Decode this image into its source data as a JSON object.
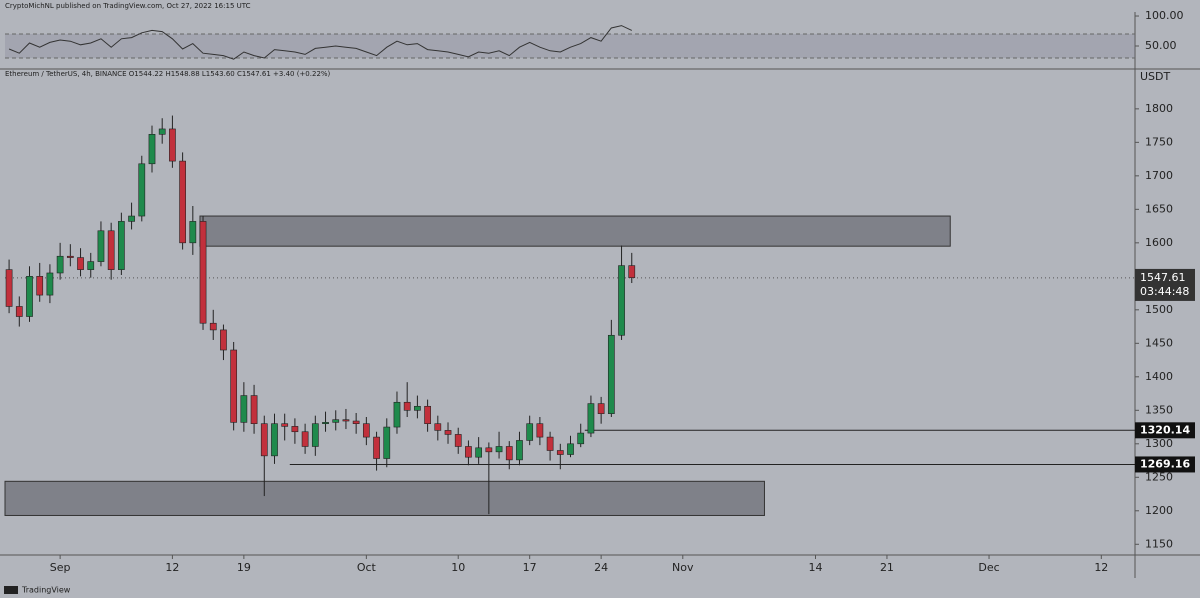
{
  "header": {
    "publisher": "CryptoMichNL published on TradingView.com, Oct 27, 2022 16:15 UTC"
  },
  "footer": {
    "brand": "TradingView"
  },
  "chart_data": [
    {
      "type": "line",
      "x": [
        -4,
        -3,
        -2,
        -1,
        0,
        1,
        2,
        3,
        4,
        5,
        6,
        7,
        8,
        9,
        10,
        11,
        12,
        13,
        14,
        15,
        16,
        17,
        18,
        19,
        20,
        21,
        22,
        23,
        24,
        25,
        26,
        27,
        28,
        29,
        30,
        31,
        32,
        33,
        34,
        35,
        36,
        37,
        38,
        39,
        40,
        41,
        42,
        43,
        44,
        45,
        46,
        47,
        48,
        49,
        50,
        51,
        52,
        53,
        54,
        55,
        56,
        57
      ],
      "values": [
        45,
        38,
        55,
        48,
        56,
        60,
        58,
        52,
        55,
        62,
        48,
        62,
        64,
        72,
        76,
        74,
        62,
        45,
        54,
        38,
        36,
        34,
        28,
        40,
        34,
        30,
        44,
        42,
        40,
        36,
        46,
        48,
        50,
        48,
        46,
        40,
        34,
        48,
        58,
        52,
        54,
        44,
        42,
        40,
        36,
        32,
        40,
        38,
        42,
        34,
        48,
        56,
        48,
        42,
        40,
        48,
        54,
        64,
        58,
        80,
        84,
        76
      ],
      "color": "#333333",
      "band": [
        30,
        70
      ],
      "xlim": [
        -4.4,
        106.3
      ],
      "ylim": [
        13.3,
        106.7
      ],
      "yticks": [
        {
          "value": 50,
          "label": "50.00"
        },
        {
          "value": 100,
          "label": "100.00"
        }
      ]
    },
    {
      "type": "candlestick",
      "title": "Ethereum / TetherUS, 4h, BINANCE  O1544.22 H1548.88 L1543.60 C1547.61 +3.40 (+0.22%)",
      "unit": "USDT",
      "x": [
        -4,
        -3,
        -2,
        -1,
        0,
        1,
        2,
        3,
        4,
        5,
        6,
        7,
        8,
        9,
        10,
        11,
        12,
        13,
        14,
        15,
        16,
        17,
        18,
        19,
        20,
        21,
        22,
        23,
        24,
        25,
        26,
        27,
        28,
        29,
        30,
        31,
        32,
        33,
        34,
        35,
        36,
        37,
        38,
        39,
        40,
        41,
        42,
        43,
        44,
        45,
        46,
        47,
        48,
        49,
        50,
        51,
        52,
        53,
        54,
        55,
        56,
        57
      ],
      "open": [
        1560,
        1505,
        1490,
        1550,
        1522,
        1555,
        1580,
        1578,
        1560,
        1572,
        1618,
        1560,
        1632,
        1640,
        1718,
        1762,
        1770,
        1722,
        1600,
        1632,
        1480,
        1470,
        1440,
        1332,
        1372,
        1330,
        1282,
        1330,
        1326,
        1318,
        1296,
        1330,
        1332,
        1336,
        1334,
        1330,
        1310,
        1278,
        1325,
        1362,
        1350,
        1356,
        1330,
        1320,
        1314,
        1296,
        1280,
        1294,
        1288,
        1296,
        1276,
        1305,
        1330,
        1310,
        1290,
        1284,
        1300,
        1316,
        1360,
        1345,
        1462,
        1566
      ],
      "high": [
        1575,
        1520,
        1565,
        1570,
        1568,
        1600,
        1598,
        1592,
        1585,
        1632,
        1630,
        1645,
        1660,
        1730,
        1775,
        1786,
        1790,
        1735,
        1655,
        1640,
        1500,
        1478,
        1452,
        1392,
        1388,
        1342,
        1345,
        1345,
        1338,
        1330,
        1342,
        1348,
        1350,
        1352,
        1346,
        1340,
        1318,
        1338,
        1378,
        1392,
        1372,
        1366,
        1342,
        1332,
        1324,
        1305,
        1310,
        1302,
        1318,
        1304,
        1318,
        1342,
        1340,
        1318,
        1300,
        1312,
        1330,
        1372,
        1370,
        1485,
        1596,
        1585
      ],
      "low": [
        1495,
        1475,
        1482,
        1512,
        1510,
        1545,
        1565,
        1550,
        1548,
        1565,
        1545,
        1552,
        1620,
        1632,
        1705,
        1748,
        1712,
        1590,
        1582,
        1470,
        1455,
        1425,
        1320,
        1318,
        1315,
        1222,
        1270,
        1305,
        1300,
        1285,
        1282,
        1318,
        1320,
        1322,
        1315,
        1298,
        1260,
        1265,
        1315,
        1340,
        1338,
        1318,
        1305,
        1300,
        1285,
        1268,
        1270,
        1195,
        1278,
        1262,
        1268,
        1298,
        1298,
        1275,
        1262,
        1280,
        1295,
        1310,
        1330,
        1340,
        1455,
        1540
      ],
      "close": [
        1505,
        1490,
        1550,
        1522,
        1555,
        1580,
        1578,
        1560,
        1572,
        1618,
        1560,
        1632,
        1640,
        1718,
        1762,
        1770,
        1722,
        1600,
        1632,
        1480,
        1470,
        1440,
        1332,
        1372,
        1330,
        1282,
        1330,
        1326,
        1318,
        1296,
        1330,
        1332,
        1336,
        1334,
        1330,
        1310,
        1278,
        1325,
        1362,
        1350,
        1356,
        1330,
        1320,
        1314,
        1296,
        1280,
        1294,
        1288,
        1296,
        1276,
        1305,
        1330,
        1310,
        1290,
        1284,
        1300,
        1316,
        1360,
        1345,
        1462,
        1566,
        1548
      ],
      "up_color": "#1f8a4c",
      "down_color": "#c2303c",
      "xlim": [
        -4.4,
        106.3
      ],
      "ylim": [
        1134,
        1858
      ],
      "yticks": [
        1150,
        1200,
        1250,
        1300,
        1350,
        1400,
        1450,
        1500,
        1550,
        1600,
        1650,
        1700,
        1750,
        1800
      ],
      "xticks": [
        {
          "value": 1,
          "label": "Sep"
        },
        12,
        19,
        {
          "value": 31,
          "label": "Oct"
        },
        {
          "value": 40,
          "label": "10"
        },
        {
          "value": 47,
          "label": "17"
        },
        {
          "value": 54,
          "label": "24"
        },
        {
          "value": 62,
          "label": "Nov"
        },
        {
          "value": 75,
          "label": "14"
        },
        {
          "value": 82,
          "label": "21"
        },
        {
          "value": 92,
          "label": "Dec"
        },
        {
          "value": 103,
          "label": "12"
        }
      ],
      "zones": [
        {
          "top": 1640,
          "bottom": 1595,
          "from": 14.7,
          "to": 88.2
        },
        {
          "top": 1244,
          "bottom": 1193,
          "from": -4.4,
          "to": 70
        }
      ],
      "levels": [
        {
          "value": 1320.14,
          "from": 52.4
        },
        {
          "value": 1269.16,
          "from": 23.5
        }
      ],
      "last": {
        "value": 1547.61,
        "countdown": "03:44:48"
      }
    }
  ]
}
